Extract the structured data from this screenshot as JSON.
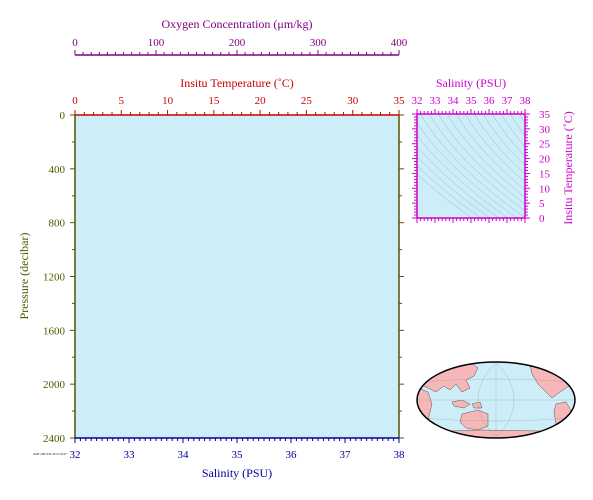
{
  "colors": {
    "plot_fill": "#cdeef8",
    "oxygen": "#800080",
    "temperature": "#cc0000",
    "pressure": "#555500",
    "salinity": "#000099",
    "ts_axes": "#cc00cc",
    "density_contours": "#8fb8d0",
    "map_ocean": "#cdeef8",
    "map_land": "#f5b7b7"
  },
  "chart_data": [
    {
      "type": "line",
      "panel": "profile",
      "series": [],
      "axes": {
        "oxygen": {
          "label": "Oxygen Concentration (μm/kg)",
          "range": [
            0,
            400
          ],
          "ticks": [
            "0",
            "100",
            "200",
            "300",
            "400"
          ],
          "position": "top"
        },
        "temperature": {
          "label": "Insitu Temperature (˚C)",
          "range": [
            0,
            35
          ],
          "ticks": [
            "0",
            "5",
            "10",
            "15",
            "20",
            "25",
            "30",
            "35"
          ],
          "position": "top"
        },
        "pressure": {
          "label": "Pressure (decibar)",
          "range": [
            0,
            2400
          ],
          "inverted": true,
          "ticks": [
            "0",
            "400",
            "800",
            "1200",
            "1600",
            "2000",
            "2400"
          ],
          "position": "left"
        },
        "salinity": {
          "label": "Salinity (PSU)",
          "range": [
            32,
            38
          ],
          "ticks": [
            "32",
            "33",
            "34",
            "35",
            "36",
            "37",
            "38"
          ],
          "position": "bottom"
        }
      },
      "grid": false
    },
    {
      "type": "scatter",
      "panel": "t-s diagram",
      "series": [],
      "axes": {
        "salinity": {
          "label": "Salinity (PSU)",
          "range": [
            32,
            38
          ],
          "ticks": [
            "32",
            "33",
            "34",
            "35",
            "36",
            "37",
            "38"
          ],
          "position": "top"
        },
        "temperature": {
          "label": "Insitu Temperature (˚C)",
          "range": [
            0,
            35
          ],
          "ticks": [
            "0",
            "5",
            "10",
            "15",
            "20",
            "25",
            "30",
            "35"
          ],
          "position": "right"
        }
      },
      "background": "density contours"
    }
  ],
  "footer_text": "GMT 2007 Feb 28 15:35:07"
}
